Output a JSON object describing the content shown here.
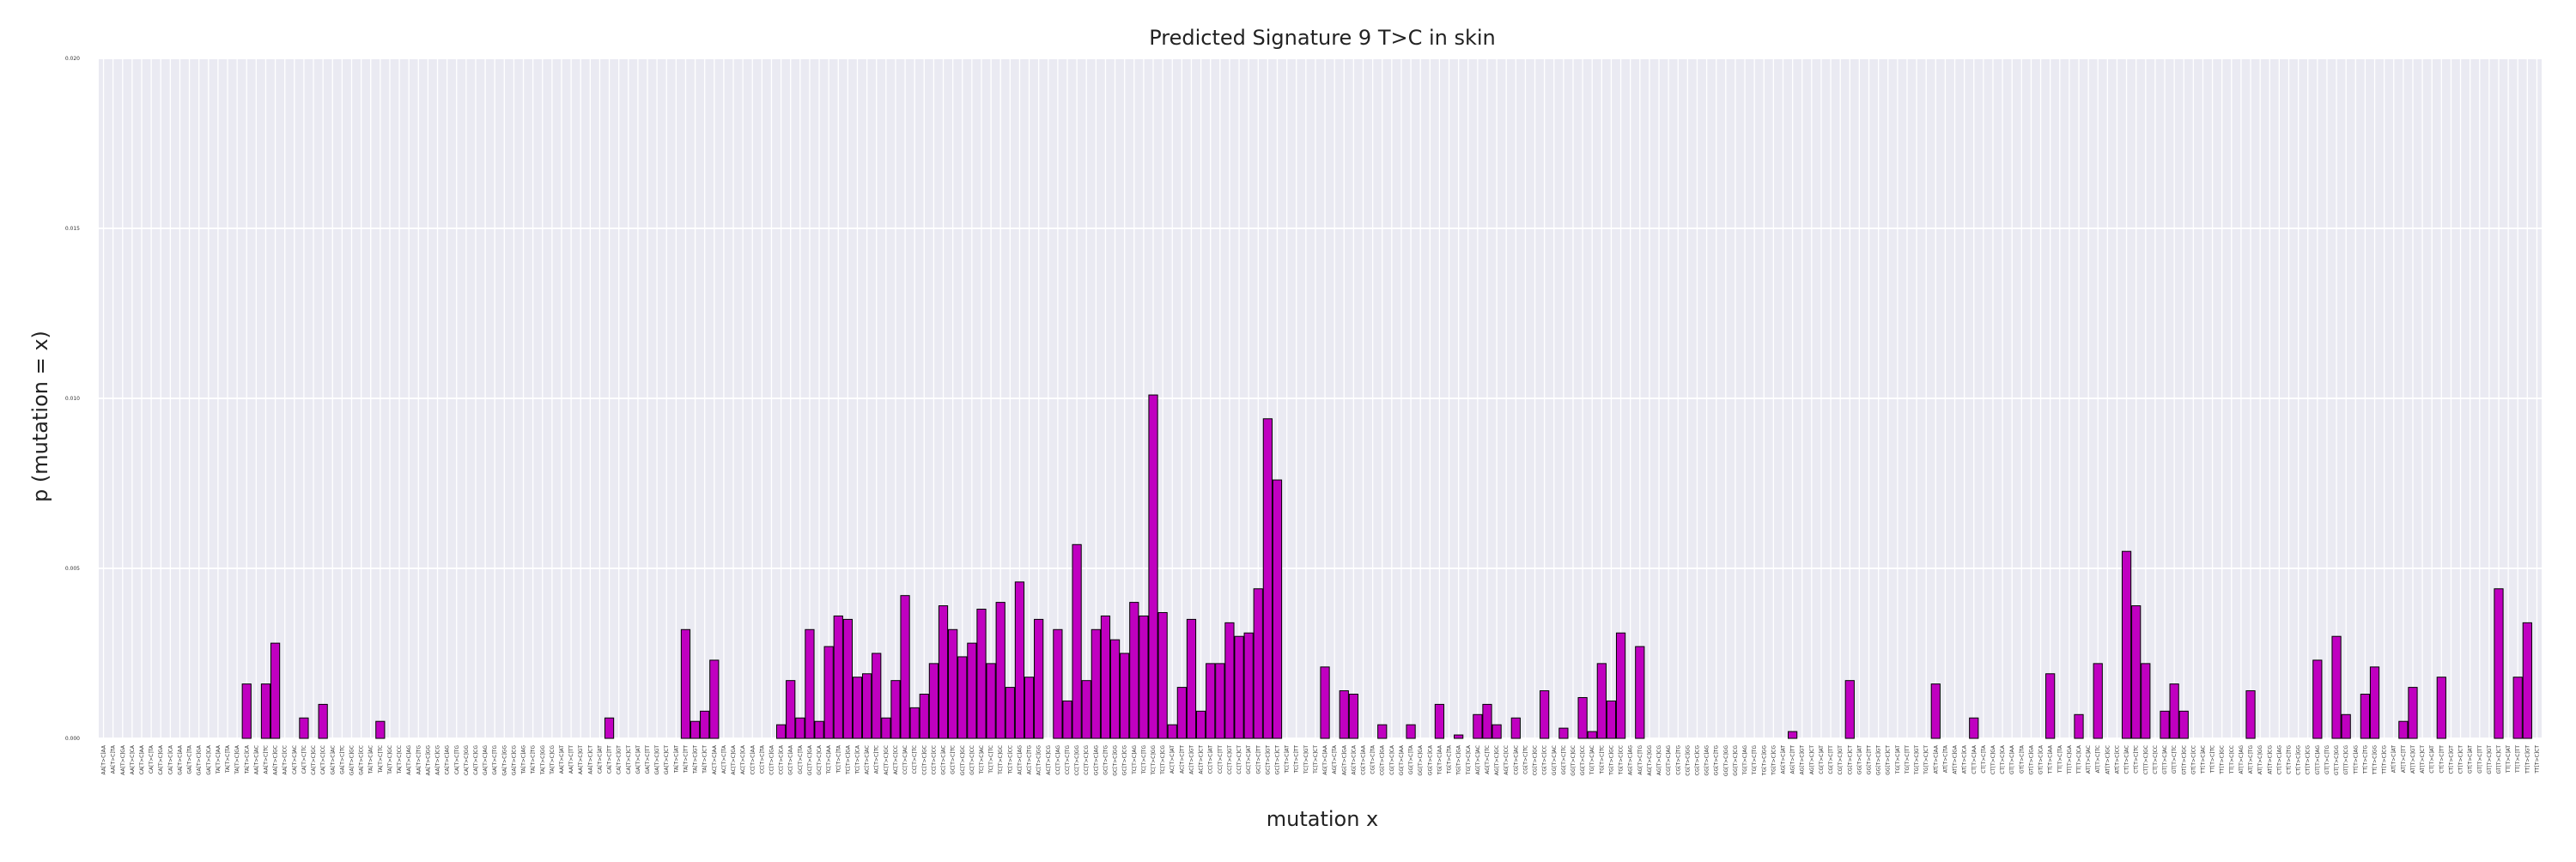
{
  "chart_data": {
    "type": "bar",
    "title": "Predicted Signature 9 T>C in skin",
    "xlabel": "mutation x",
    "ylabel": "p (mutation = x)",
    "ylim": [
      0,
      0.02
    ],
    "yticks": [
      "0.000",
      "0.005",
      "0.010",
      "0.015",
      "0.020"
    ],
    "grid": true,
    "bar_color": "#c000c0",
    "edge_color": "#000000",
    "background": "#eaeaf2",
    "categories": [
      "AA[T>C]AA",
      "AA[T>C]TA",
      "AA[T>C]GA",
      "AA[T>C]CA",
      "CA[T>C]AA",
      "CA[T>C]TA",
      "CA[T>C]GA",
      "CA[T>C]CA",
      "GA[T>C]AA",
      "GA[T>C]TA",
      "GA[T>C]GA",
      "GA[T>C]CA",
      "TA[T>C]AA",
      "TA[T>C]TA",
      "TA[T>C]GA",
      "TA[T>C]CA",
      "AA[T>C]AC",
      "AA[T>C]TC",
      "AA[T>C]GC",
      "AA[T>C]CC",
      "CA[T>C]AC",
      "CA[T>C]TC",
      "CA[T>C]GC",
      "CA[T>C]CC",
      "GA[T>C]AC",
      "GA[T>C]TC",
      "GA[T>C]GC",
      "GA[T>C]CC",
      "TA[T>C]AC",
      "TA[T>C]TC",
      "TA[T>C]GC",
      "TA[T>C]CC",
      "AA[T>C]AG",
      "AA[T>C]TG",
      "AA[T>C]GG",
      "AA[T>C]CG",
      "CA[T>C]AG",
      "CA[T>C]TG",
      "CA[T>C]GG",
      "CA[T>C]CG",
      "GA[T>C]AG",
      "GA[T>C]TG",
      "GA[T>C]GG",
      "GA[T>C]CG",
      "TA[T>C]AG",
      "TA[T>C]TG",
      "TA[T>C]GG",
      "TA[T>C]CG",
      "AA[T>C]AT",
      "AA[T>C]TT",
      "AA[T>C]GT",
      "AA[T>C]CT",
      "CA[T>C]AT",
      "CA[T>C]TT",
      "CA[T>C]GT",
      "CA[T>C]CT",
      "GA[T>C]AT",
      "GA[T>C]TT",
      "GA[T>C]GT",
      "GA[T>C]CT",
      "TA[T>C]AT",
      "TA[T>C]TT",
      "TA[T>C]GT",
      "TA[T>C]CT",
      "AC[T>C]AA",
      "AC[T>C]TA",
      "AC[T>C]GA",
      "AC[T>C]CA",
      "CC[T>C]AA",
      "CC[T>C]TA",
      "CC[T>C]GA",
      "CC[T>C]CA",
      "GC[T>C]AA",
      "GC[T>C]TA",
      "GC[T>C]GA",
      "GC[T>C]CA",
      "TC[T>C]AA",
      "TC[T>C]TA",
      "TC[T>C]GA",
      "TC[T>C]CA",
      "AC[T>C]AC",
      "AC[T>C]TC",
      "AC[T>C]GC",
      "AC[T>C]CC",
      "CC[T>C]AC",
      "CC[T>C]TC",
      "CC[T>C]GC",
      "CC[T>C]CC",
      "GC[T>C]AC",
      "GC[T>C]TC",
      "GC[T>C]GC",
      "GC[T>C]CC",
      "TC[T>C]AC",
      "TC[T>C]TC",
      "TC[T>C]GC",
      "TC[T>C]CC",
      "AC[T>C]AG",
      "AC[T>C]TG",
      "AC[T>C]GG",
      "AC[T>C]CG",
      "CC[T>C]AG",
      "CC[T>C]TG",
      "CC[T>C]GG",
      "CC[T>C]CG",
      "GC[T>C]AG",
      "GC[T>C]TG",
      "GC[T>C]GG",
      "GC[T>C]CG",
      "TC[T>C]AG",
      "TC[T>C]TG",
      "TC[T>C]GG",
      "TC[T>C]CG",
      "AC[T>C]AT",
      "AC[T>C]TT",
      "AC[T>C]GT",
      "AC[T>C]CT",
      "CC[T>C]AT",
      "CC[T>C]TT",
      "CC[T>C]GT",
      "CC[T>C]CT",
      "GC[T>C]AT",
      "GC[T>C]TT",
      "GC[T>C]GT",
      "GC[T>C]CT",
      "TC[T>C]AT",
      "TC[T>C]TT",
      "TC[T>C]GT",
      "TC[T>C]CT",
      "AG[T>C]AA",
      "AG[T>C]TA",
      "AG[T>C]GA",
      "AG[T>C]CA",
      "CG[T>C]AA",
      "CG[T>C]TA",
      "CG[T>C]GA",
      "CG[T>C]CA",
      "GG[T>C]AA",
      "GG[T>C]TA",
      "GG[T>C]GA",
      "GG[T>C]CA",
      "TG[T>C]AA",
      "TG[T>C]TA",
      "TG[T>C]GA",
      "TG[T>C]CA",
      "AG[T>C]AC",
      "AG[T>C]TC",
      "AG[T>C]GC",
      "AG[T>C]CC",
      "CG[T>C]AC",
      "CG[T>C]TC",
      "CG[T>C]GC",
      "CG[T>C]CC",
      "GG[T>C]AC",
      "GG[T>C]TC",
      "GG[T>C]GC",
      "GG[T>C]CC",
      "TG[T>C]AC",
      "TG[T>C]TC",
      "TG[T>C]GC",
      "TG[T>C]CC",
      "AG[T>C]AG",
      "AG[T>C]TG",
      "AG[T>C]GG",
      "AG[T>C]CG",
      "CG[T>C]AG",
      "CG[T>C]TG",
      "CG[T>C]GG",
      "CG[T>C]CG",
      "GG[T>C]AG",
      "GG[T>C]TG",
      "GG[T>C]GG",
      "GG[T>C]CG",
      "TG[T>C]AG",
      "TG[T>C]TG",
      "TG[T>C]GG",
      "TG[T>C]CG",
      "AG[T>C]AT",
      "AG[T>C]TT",
      "AG[T>C]GT",
      "AG[T>C]CT",
      "CG[T>C]AT",
      "CG[T>C]TT",
      "CG[T>C]GT",
      "CG[T>C]CT",
      "GG[T>C]AT",
      "GG[T>C]TT",
      "GG[T>C]GT",
      "GG[T>C]CT",
      "TG[T>C]AT",
      "TG[T>C]TT",
      "TG[T>C]GT",
      "TG[T>C]CT",
      "AT[T>C]AA",
      "AT[T>C]TA",
      "AT[T>C]GA",
      "AT[T>C]CA",
      "CT[T>C]AA",
      "CT[T>C]TA",
      "CT[T>C]GA",
      "CT[T>C]CA",
      "GT[T>C]AA",
      "GT[T>C]TA",
      "GT[T>C]GA",
      "GT[T>C]CA",
      "TT[T>C]AA",
      "TT[T>C]TA",
      "TT[T>C]GA",
      "TT[T>C]CA",
      "AT[T>C]AC",
      "AT[T>C]TC",
      "AT[T>C]GC",
      "AT[T>C]CC",
      "CT[T>C]AC",
      "CT[T>C]TC",
      "CT[T>C]GC",
      "CT[T>C]CC",
      "GT[T>C]AC",
      "GT[T>C]TC",
      "GT[T>C]GC",
      "GT[T>C]CC",
      "TT[T>C]AC",
      "TT[T>C]TC",
      "TT[T>C]GC",
      "TT[T>C]CC",
      "AT[T>C]AG",
      "AT[T>C]TG",
      "AT[T>C]GG",
      "AT[T>C]CG",
      "CT[T>C]AG",
      "CT[T>C]TG",
      "CT[T>C]GG",
      "CT[T>C]CG",
      "GT[T>C]AG",
      "GT[T>C]TG",
      "GT[T>C]GG",
      "GT[T>C]CG",
      "TT[T>C]AG",
      "TT[T>C]TG",
      "TT[T>C]GG",
      "TT[T>C]CG",
      "AT[T>C]AT",
      "AT[T>C]TT",
      "AT[T>C]GT",
      "AT[T>C]CT",
      "CT[T>C]AT",
      "CT[T>C]TT",
      "CT[T>C]GT",
      "CT[T>C]CT",
      "GT[T>C]AT",
      "GT[T>C]TT",
      "GT[T>C]GT",
      "GT[T>C]CT",
      "TT[T>C]AT",
      "TT[T>C]TT",
      "TT[T>C]GT",
      "TT[T>C]CT"
    ],
    "values": [
      0,
      0,
      0,
      0,
      0,
      0,
      0,
      0,
      0,
      0,
      0,
      0,
      0,
      0,
      0,
      0.0016,
      0,
      0.0016,
      0.0028,
      0,
      0,
      0.0006,
      0,
      0.001,
      0,
      0,
      0,
      0,
      0,
      0.0005,
      0,
      0,
      0,
      0,
      0,
      0,
      0,
      0,
      0,
      0,
      0,
      0,
      0,
      0,
      0,
      0,
      0,
      0,
      0,
      0,
      0,
      0,
      0,
      0.0006,
      0,
      0,
      0,
      0,
      0,
      0,
      0,
      0.0032,
      0.0005,
      0.0008,
      0.0023,
      0,
      0,
      0,
      0,
      0,
      0,
      0.0004,
      0.0017,
      0.0006,
      0.0032,
      0.0005,
      0.0027,
      0.0036,
      0.0035,
      0.0018,
      0.0019,
      0.0025,
      0.0006,
      0.0017,
      0.0042,
      0.0009,
      0.0013,
      0.0022,
      0.0039,
      0.0032,
      0.0024,
      0.0028,
      0.0038,
      0.0022,
      0.004,
      0.0015,
      0.0046,
      0.0018,
      0.0035,
      0,
      0.0032,
      0.0011,
      0.0057,
      0.0017,
      0.0032,
      0.0036,
      0.0029,
      0.0025,
      0.004,
      0.0036,
      0.0101,
      0.0037,
      0.0004,
      0.0015,
      0.0035,
      0.0008,
      0.0022,
      0.0022,
      0.0034,
      0.003,
      0.0031,
      0.0044,
      0.0094,
      0.0076,
      0,
      0,
      0,
      0,
      0.0021,
      0,
      0.0014,
      0.0013,
      0,
      0,
      0.0004,
      0,
      0,
      0.0004,
      0,
      0,
      0.001,
      0,
      0.0001,
      0,
      0.0007,
      0.001,
      0.0004,
      0,
      0.0006,
      0,
      0,
      0.0014,
      0,
      0.0003,
      0,
      0.0012,
      0.0002,
      0.0022,
      0.0011,
      0.0031,
      0,
      0.0027,
      0,
      0,
      0,
      0,
      0,
      0,
      0,
      0,
      0,
      0,
      0,
      0,
      0,
      0,
      0,
      0.0002,
      0,
      0,
      0,
      0,
      0,
      0.0017,
      0,
      0,
      0,
      0,
      0,
      0,
      0,
      0,
      0.0016,
      0,
      0,
      0,
      0.0006,
      0,
      0,
      0,
      0,
      0,
      0,
      0,
      0.0019,
      0,
      0,
      0.0007,
      0,
      0.0022,
      0,
      0,
      0.0055,
      0.0039,
      0.0022,
      0,
      0.0008,
      0.0016,
      0.0008,
      0,
      0,
      0,
      0,
      0,
      0,
      0.0014,
      0,
      0,
      0,
      0,
      0,
      0,
      0.0023,
      0,
      0.003,
      0.0007,
      0,
      0.0013,
      0.0021,
      0,
      0,
      0.0005,
      0.0015,
      0,
      0,
      0.0018,
      0,
      0,
      0,
      0,
      0,
      0.0044,
      0,
      0.0018,
      0.0034,
      0
    ]
  }
}
